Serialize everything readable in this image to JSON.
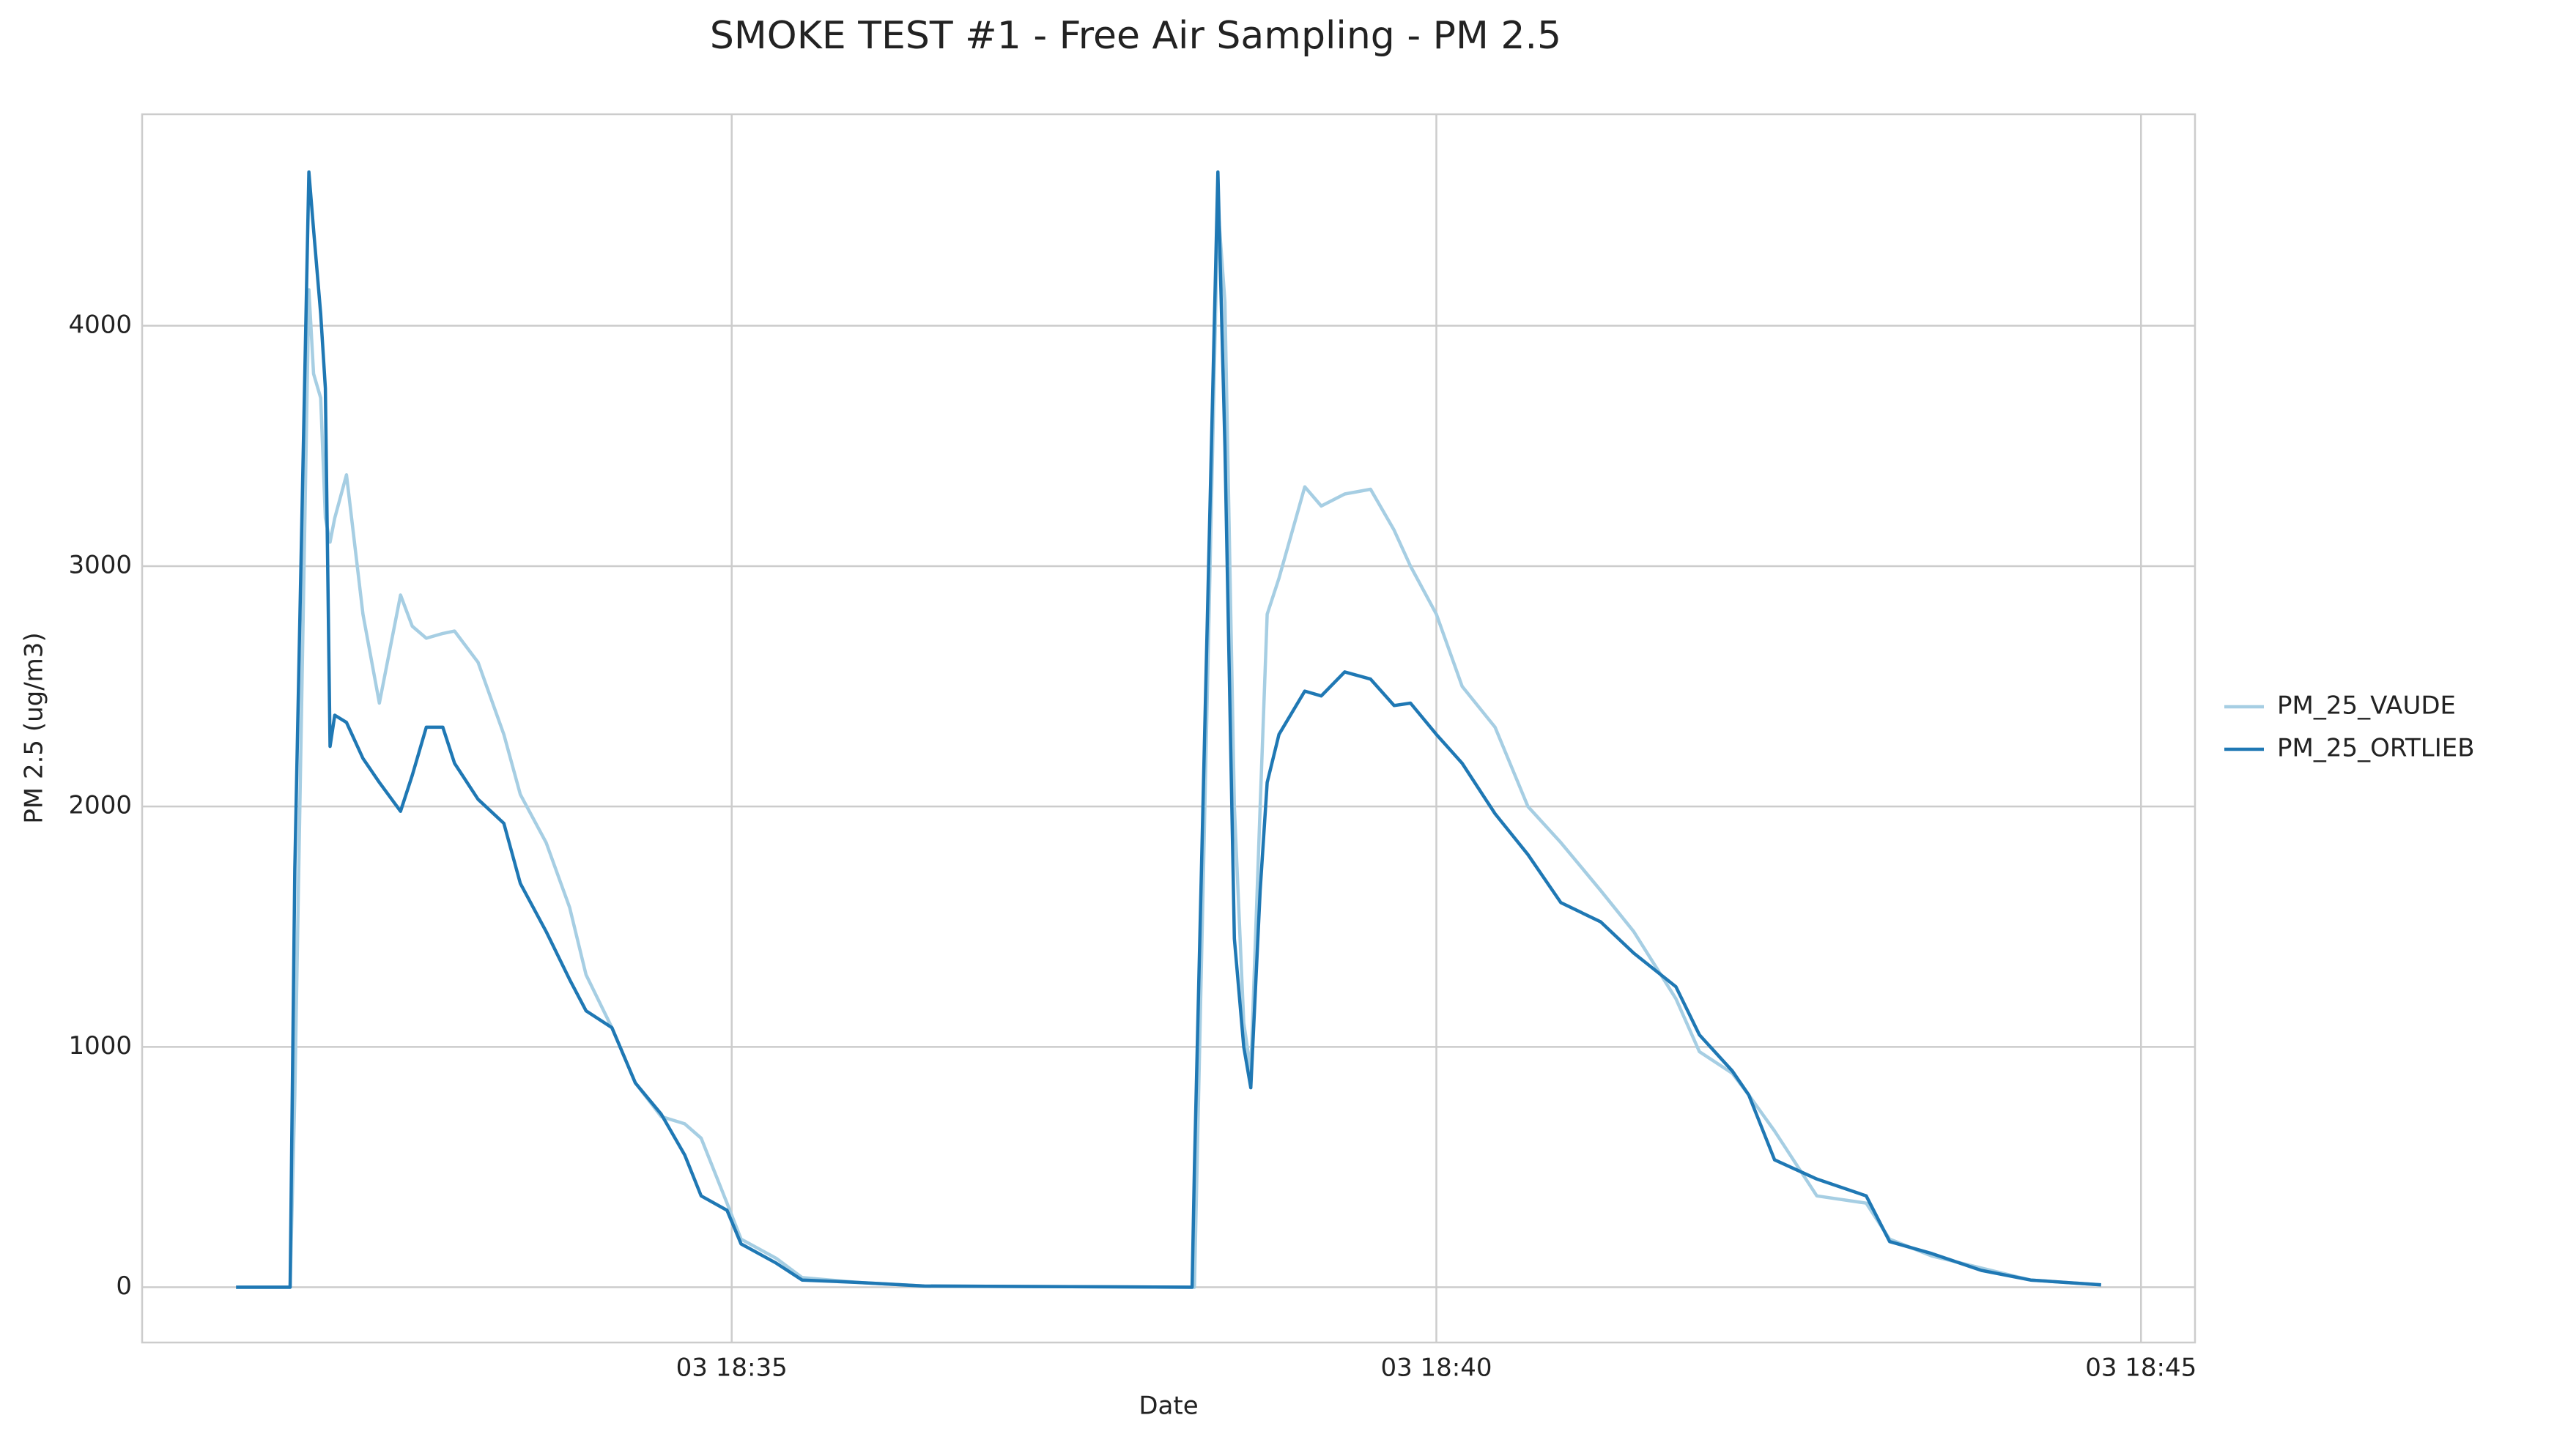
{
  "chart_data": {
    "type": "line",
    "title": "SMOKE TEST #1 - Free Air Sampling - PM 2.5",
    "x_label": "Date",
    "y_label": "PM 2.5 (ug/m3)",
    "x": [
      "03 18:31:29",
      "03 18:31:52",
      "03 18:31:54",
      "03 18:32:00",
      "03 18:32:02",
      "03 18:32:05",
      "03 18:32:07",
      "03 18:32:09",
      "03 18:32:11",
      "03 18:32:16",
      "03 18:32:23",
      "03 18:32:30",
      "03 18:32:39",
      "03 18:32:44",
      "03 18:32:50",
      "03 18:32:57",
      "03 18:33:02",
      "03 18:33:12",
      "03 18:33:23",
      "03 18:33:30",
      "03 18:33:41",
      "03 18:33:51",
      "03 18:33:58",
      "03 18:34:09",
      "03 18:34:19",
      "03 18:34:30",
      "03 18:34:40",
      "03 18:34:47",
      "03 18:34:58",
      "03 18:35:04",
      "03 18:35:19",
      "03 18:35:30",
      "03 18:35:54",
      "03 18:36:22",
      "03 18:38:16",
      "03 18:38:17",
      "03 18:38:27",
      "03 18:38:30",
      "03 18:38:34",
      "03 18:38:38",
      "03 18:38:41",
      "03 18:38:45",
      "03 18:38:48",
      "03 18:38:53",
      "03 18:39:04",
      "03 18:39:11",
      "03 18:39:21",
      "03 18:39:32",
      "03 18:39:42",
      "03 18:39:49",
      "03 18:40:00",
      "03 18:40:11",
      "03 18:40:25",
      "03 18:40:39",
      "03 18:40:53",
      "03 18:41:10",
      "03 18:41:24",
      "03 18:41:42",
      "03 18:41:52",
      "03 18:42:06",
      "03 18:42:13",
      "03 18:42:24",
      "03 18:42:42",
      "03 18:43:03",
      "03 18:43:13",
      "03 18:43:31",
      "03 18:43:52",
      "03 18:44:13",
      "03 18:44:43"
    ],
    "series": [
      {
        "name": "PM_25_VAUDE",
        "color": "#a6cee3",
        "values": [
          0,
          0,
          800,
          4150,
          3800,
          3700,
          3200,
          3100,
          3200,
          3380,
          2800,
          2430,
          2880,
          2750,
          2700,
          2720,
          2730,
          2600,
          2300,
          2050,
          1850,
          1580,
          1300,
          1080,
          850,
          710,
          680,
          620,
          350,
          200,
          120,
          40,
          20,
          5,
          0,
          0,
          4500,
          4100,
          2000,
          1100,
          900,
          2000,
          2800,
          2950,
          3330,
          3250,
          3300,
          3320,
          3150,
          3000,
          2800,
          2500,
          2330,
          2000,
          1850,
          1650,
          1480,
          1200,
          980,
          890,
          800,
          650,
          380,
          350,
          200,
          130,
          80,
          30,
          10
        ]
      },
      {
        "name": "PM_25_ORTLIEB",
        "color": "#1f78b4",
        "values": [
          0,
          0,
          1740,
          4640,
          4400,
          4050,
          3740,
          2250,
          2380,
          2350,
          2200,
          2100,
          1980,
          2130,
          2330,
          2330,
          2180,
          2030,
          1930,
          1680,
          1480,
          1280,
          1150,
          1080,
          850,
          720,
          550,
          380,
          320,
          180,
          100,
          30,
          20,
          5,
          0,
          500,
          4640,
          3500,
          1450,
          1000,
          830,
          1650,
          2100,
          2300,
          2480,
          2460,
          2560,
          2530,
          2420,
          2430,
          2300,
          2180,
          1970,
          1800,
          1600,
          1520,
          1390,
          1250,
          1050,
          900,
          800,
          530,
          450,
          380,
          190,
          140,
          70,
          30,
          10
        ]
      }
    ],
    "xlim": [
      "03 18:30:49",
      "03 18:45:23"
    ],
    "xticks": [
      "03 18:35",
      "03 18:40",
      "03 18:45"
    ],
    "ylim": [
      -230,
      4880
    ],
    "yticks": [
      0,
      1000,
      2000,
      3000,
      4000
    ],
    "grid": true,
    "legend": "right"
  }
}
